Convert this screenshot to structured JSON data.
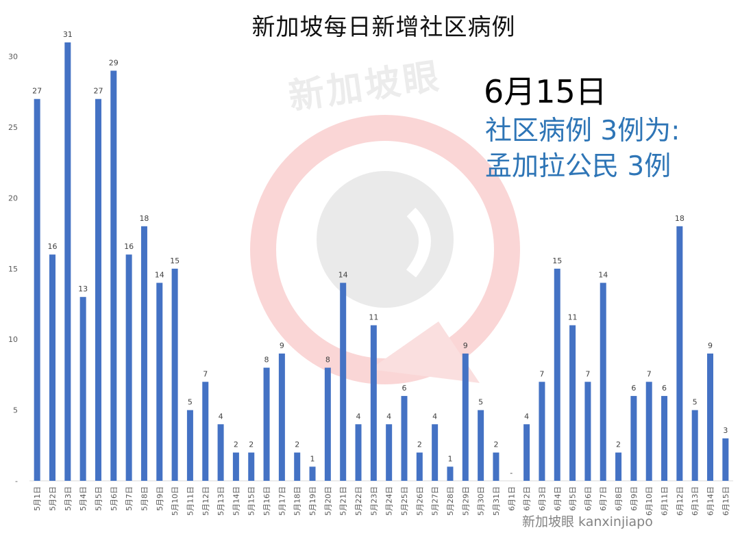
{
  "title": "新加坡每日新增社区病例",
  "annotation": {
    "date": "6月15日",
    "line1": "社区病例 3例为:",
    "line2": "孟加拉公民 3例"
  },
  "watermark": {
    "text": "新加坡眼",
    "footer": "新加坡眼 kanxinjiapo"
  },
  "colors": {
    "bar": "#4472c4",
    "annotation": "#2e75b6",
    "watermark_red": "#f4a8a8",
    "watermark_gray": "#bfbfbf"
  },
  "chart_data": {
    "type": "bar",
    "title": "新加坡每日新增社区病例",
    "ylim": [
      0,
      31
    ],
    "yticks": [
      "-",
      "5",
      "10",
      "15",
      "20",
      "25",
      "30"
    ],
    "grid": false,
    "categories": [
      "5月1日",
      "5月2日",
      "5月3日",
      "5月4日",
      "5月5日",
      "5月6日",
      "5月7日",
      "5月8日",
      "5月9日",
      "5月10日",
      "5月11日",
      "5月12日",
      "5月13日",
      "5月14日",
      "5月15日",
      "5月16日",
      "5月17日",
      "5月18日",
      "5月19日",
      "5月20日",
      "5月21日",
      "5月22日",
      "5月23日",
      "5月24日",
      "5月25日",
      "5月26日",
      "5月27日",
      "5月28日",
      "5月29日",
      "5月30日",
      "5月31日",
      "6月1日",
      "6月2日",
      "6月3日",
      "6月4日",
      "6月5日",
      "6月6日",
      "6月7日",
      "6月8日",
      "6月9日",
      "6月10日",
      "6月11日",
      "6月12日",
      "6月13日",
      "6月14日",
      "6月15日"
    ],
    "values": [
      27,
      16,
      31,
      13,
      27,
      29,
      16,
      18,
      14,
      15,
      5,
      7,
      4,
      2,
      2,
      8,
      9,
      2,
      1,
      8,
      14,
      4,
      11,
      4,
      6,
      2,
      4,
      1,
      9,
      5,
      2,
      0,
      4,
      7,
      15,
      11,
      7,
      14,
      2,
      6,
      7,
      6,
      18,
      5,
      9,
      3
    ],
    "labels": [
      "27",
      "16",
      "31",
      "13",
      "27",
      "29",
      "16",
      "18",
      "14",
      "15",
      "5",
      "7",
      "4",
      "2",
      "2",
      "8",
      "9",
      "2",
      "1",
      "8",
      "14",
      "4",
      "11",
      "4",
      "6",
      "2",
      "4",
      "1",
      "9",
      "5",
      "2",
      "-",
      "4",
      "7",
      "15",
      "11",
      "7",
      "14",
      "2",
      "6",
      "7",
      "6",
      "18",
      "5",
      "9",
      "3"
    ]
  }
}
